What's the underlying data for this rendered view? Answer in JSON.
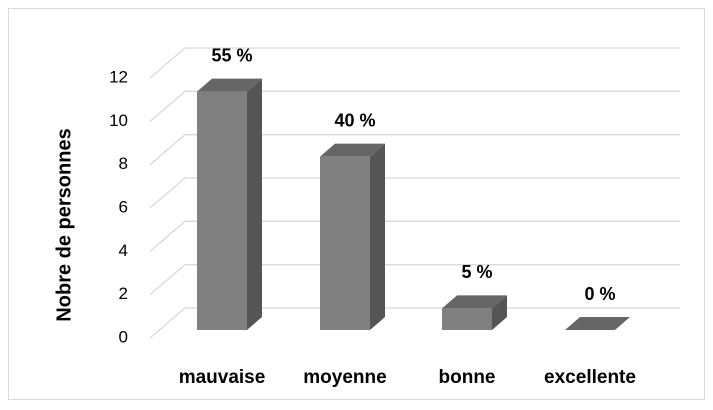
{
  "chart_data": {
    "type": "bar3d",
    "y_label": "Nobre de personnes",
    "categories": [
      "mauvaise",
      "moyenne",
      "bonne",
      "excellente"
    ],
    "values": [
      11,
      8,
      1,
      0
    ],
    "value_labels": [
      "55 %",
      "40 %",
      "5 %",
      "0 %"
    ],
    "color": "#808080",
    "ylim": [
      0,
      12
    ],
    "yticks": [
      0,
      2,
      4,
      6,
      8,
      10,
      12
    ],
    "grid": true
  }
}
